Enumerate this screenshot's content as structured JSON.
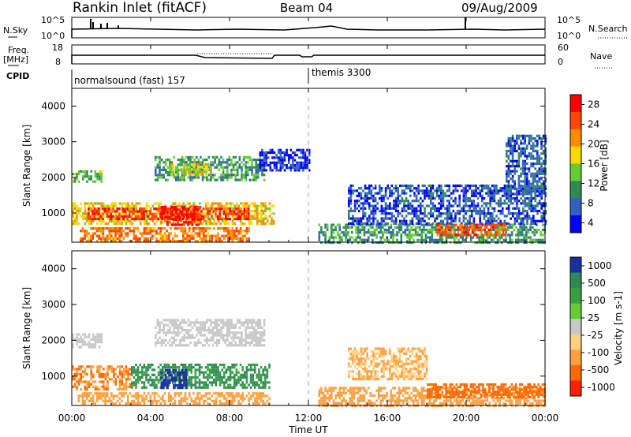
{
  "header": {
    "station": "Rankin Inlet (fitACF)",
    "beam": "Beam 04",
    "date": "09/Aug/2009"
  },
  "noise_panel": {
    "left_label": "N.Sky",
    "right_label": "N.Search",
    "left_ticks": [
      "10^5",
      "10^0"
    ],
    "right_ticks": [
      "10^5",
      "10^0"
    ]
  },
  "freq_panel": {
    "left_label_1": "Freq.",
    "left_label_2": "[MHz]",
    "right_label": "Nave",
    "left_ticks": [
      "18",
      "8"
    ],
    "right_ticks": [
      "60",
      "0"
    ]
  },
  "cpid_panel": {
    "label": "CPID",
    "entries": [
      {
        "name": "normalsound (fast) 157",
        "start_hour": 0
      },
      {
        "name": "themis 3300",
        "start_hour": 12
      }
    ]
  },
  "x_axis": {
    "label": "Time UT",
    "ticks": [
      "00:00",
      "04:00",
      "08:00",
      "12:00",
      "16:00",
      "20:00",
      "00:00"
    ]
  },
  "chart_data": [
    {
      "type": "heatmap",
      "title": "",
      "xlabel": "Time UT",
      "ylabel": "Slant Range [km]",
      "xlim": [
        0,
        24
      ],
      "ylim": [
        180,
        4500
      ],
      "yticks": [
        "1000",
        "2000",
        "3000",
        "4000"
      ],
      "colorbar": {
        "label": "Power [dB]",
        "ticks": [
          "28",
          "24",
          "20",
          "16",
          "12",
          "8",
          "4"
        ],
        "range": [
          0,
          30
        ],
        "colors": [
          "#0000ff",
          "#3060c0",
          "#2e8b57",
          "#66cc33",
          "#ffd700",
          "#ff8c00",
          "#ff4500",
          "#ff0000"
        ]
      },
      "regions": [
        {
          "t0": 0.0,
          "t1": 10.2,
          "r0": 700,
          "r1": 1300,
          "value": 18
        },
        {
          "t0": 0.8,
          "t1": 9.0,
          "r0": 850,
          "r1": 1150,
          "value": 26
        },
        {
          "t0": 4.5,
          "t1": 6.5,
          "r0": 700,
          "r1": 1200,
          "value": 28
        },
        {
          "t0": 0.0,
          "t1": 1.5,
          "r0": 1850,
          "r1": 2200,
          "value": 12
        },
        {
          "t0": 4.2,
          "t1": 9.8,
          "r0": 1900,
          "r1": 2600,
          "value": 10
        },
        {
          "t0": 5.0,
          "t1": 7.0,
          "r0": 2100,
          "r1": 2400,
          "value": 16
        },
        {
          "t0": 0.4,
          "t1": 9.0,
          "r0": 200,
          "r1": 600,
          "value": 22
        },
        {
          "t0": 12.5,
          "t1": 24.0,
          "r0": 200,
          "r1": 700,
          "value": 10
        },
        {
          "t0": 14.0,
          "t1": 24.0,
          "r0": 700,
          "r1": 1800,
          "value": 5
        },
        {
          "t0": 18.5,
          "t1": 22.0,
          "r0": 400,
          "r1": 700,
          "value": 24
        },
        {
          "t0": 22.0,
          "t1": 24.0,
          "r0": 1500,
          "r1": 3200,
          "value": 6
        },
        {
          "t0": 9.5,
          "t1": 12.0,
          "r0": 2200,
          "r1": 2800,
          "value": 3
        }
      ]
    },
    {
      "type": "heatmap",
      "title": "",
      "xlabel": "Time UT",
      "ylabel": "Slant Range [km]",
      "xlim": [
        0,
        24
      ],
      "ylim": [
        180,
        4500
      ],
      "yticks": [
        "1000",
        "2000",
        "3000",
        "4000"
      ],
      "colorbar": {
        "label": "Velocity [m s-1]",
        "ticks": [
          "1000",
          "500",
          "100",
          "25",
          "-25",
          "-100",
          "-500",
          "-1000"
        ],
        "colors": [
          "#1a2fa0",
          "#2e8b57",
          "#3a9f44",
          "#66cc33",
          "#c8c8c8",
          "#ffd080",
          "#ffa040",
          "#ff6a00",
          "#ff2000"
        ]
      },
      "regions": [
        {
          "t0": 0.0,
          "t1": 3.0,
          "r0": 650,
          "r1": 1300,
          "value": -300
        },
        {
          "t0": 3.0,
          "t1": 10.0,
          "r0": 650,
          "r1": 1350,
          "value": 300
        },
        {
          "t0": 4.5,
          "t1": 5.8,
          "r0": 700,
          "r1": 1200,
          "value": 1000
        },
        {
          "t0": 0.0,
          "t1": 1.5,
          "r0": 1800,
          "r1": 2200,
          "value": 0
        },
        {
          "t0": 4.2,
          "t1": 9.8,
          "r0": 1850,
          "r1": 2600,
          "value": 0
        },
        {
          "t0": 12.5,
          "t1": 24.0,
          "r0": 200,
          "r1": 700,
          "value": -150
        },
        {
          "t0": 14.0,
          "t1": 18.0,
          "r0": 900,
          "r1": 1800,
          "value": -60
        },
        {
          "t0": 18.0,
          "t1": 24.0,
          "r0": 400,
          "r1": 800,
          "value": -400
        },
        {
          "t0": 0.3,
          "t1": 10.0,
          "r0": 200,
          "r1": 550,
          "value": -150
        }
      ]
    }
  ]
}
